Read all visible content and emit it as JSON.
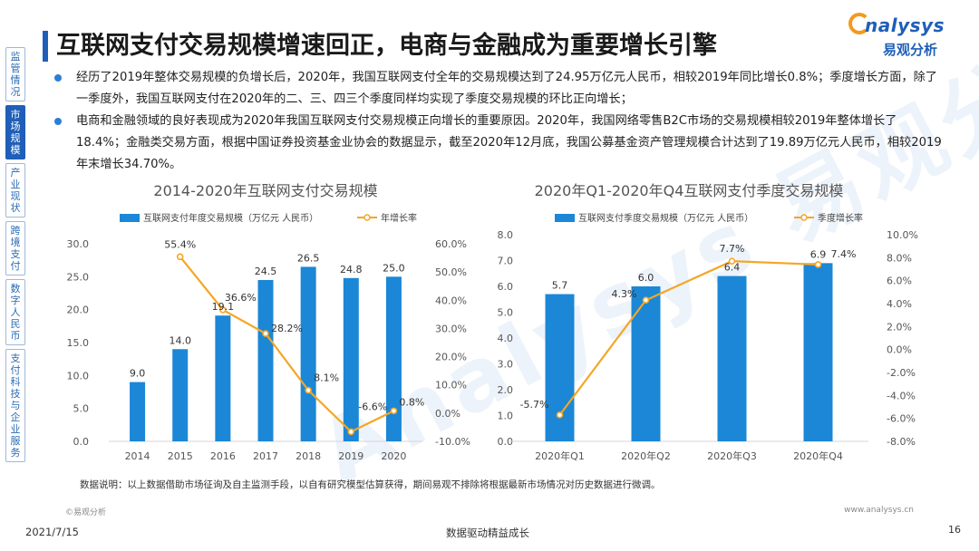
{
  "page": {
    "title": "互联网支付交易规模增速回正，电商与金融成为重要增长引擎",
    "brand_en": "nalysys",
    "brand_zh": "易观分析",
    "watermark": "Analysys 易观分析",
    "side_nav": [
      "监管情况",
      "市场规模",
      "产业现状",
      "跨境支付",
      "数字人民币",
      "支付科技与企业服务"
    ],
    "side_nav_active": 1,
    "bullets": [
      "经历了2019年整体交易规模的负增长后，2020年，我国互联网支付全年的交易规模达到了24.95万亿元人民币，相较2019年同比增长0.8%；季度增长方面，除了一季度外，我国互联网支付在2020年的二、三、四三个季度同样均实现了季度交易规模的环比正向增长；",
      "电商和金融领域的良好表现成为2020年我国互联网支付交易规模正向增长的重要原因。2020年，我国网络零售B2C市场的交易规模相较2019年整体增长了18.4%；金融类交易方面，根据中国证券投资基金业协会的数据显示，截至2020年12月底，我国公募基金资产管理规模合计达到了19.89万亿元人民币，相较2019年末增长34.70%。"
    ],
    "footnote": "数据说明：以上数据借助市场征询及自主监测手段，以自有研究模型估算获得，期间易观不排除将根据最新市场情况对历史数据进行微调。",
    "copyright": "©易观分析",
    "site": "www.analysys.cn",
    "date": "2021/7/15",
    "slogan": "数据驱动精益成长",
    "page_number": "16"
  },
  "colors": {
    "bar": "#1b87d6",
    "line": "#f5a623",
    "accent": "#1f5fb8"
  },
  "chart_data": [
    {
      "type": "bar",
      "title": "2014-2020年互联网支付交易规模",
      "categories": [
        "2014",
        "2015",
        "2016",
        "2017",
        "2018",
        "2019",
        "2020"
      ],
      "series": [
        {
          "name": "互联网支付年度交易规模（万亿元 人民币）",
          "type": "bar",
          "axis": "left",
          "values": [
            9.0,
            14.0,
            19.1,
            24.5,
            26.5,
            24.8,
            25.0
          ],
          "labels": [
            "9.0",
            "14.0",
            "19.1",
            "24.5",
            "26.5",
            "24.8",
            "25.0"
          ]
        },
        {
          "name": "年增长率",
          "type": "line",
          "axis": "right",
          "values": [
            null,
            55.4,
            36.6,
            28.2,
            8.1,
            -6.6,
            0.8
          ],
          "labels": [
            "",
            "55.4%",
            "36.6%",
            "28.2%",
            "8.1%",
            "-6.6%",
            "0.8%"
          ]
        }
      ],
      "ylim_left": [
        0,
        30
      ],
      "yticks_left": [
        "0.0",
        "5.0",
        "10.0",
        "15.0",
        "20.0",
        "25.0",
        "30.0"
      ],
      "ylim_right": [
        -10,
        60
      ],
      "yticks_right": [
        "-10.0%",
        "0.0%",
        "10.0%",
        "20.0%",
        "30.0%",
        "40.0%",
        "50.0%",
        "60.0%"
      ],
      "legend": "top"
    },
    {
      "type": "bar",
      "title": "2020年Q1-2020年Q4互联网支付季度交易规模",
      "categories": [
        "2020年Q1",
        "2020年Q2",
        "2020年Q3",
        "2020年Q4"
      ],
      "series": [
        {
          "name": "互联网支付季度交易规模（万亿元 人民币）",
          "type": "bar",
          "axis": "left",
          "values": [
            5.7,
            6.0,
            6.4,
            6.9
          ],
          "labels": [
            "5.7",
            "6.0",
            "6.4",
            "6.9"
          ]
        },
        {
          "name": "季度增长率",
          "type": "line",
          "axis": "right",
          "values": [
            -5.7,
            4.3,
            7.7,
            7.4
          ],
          "labels": [
            "-5.7%",
            "4.3%",
            "7.7%",
            "7.4%"
          ]
        }
      ],
      "ylim_left": [
        0,
        8
      ],
      "yticks_left": [
        "0.0",
        "1.0",
        "2.0",
        "3.0",
        "4.0",
        "5.0",
        "6.0",
        "7.0",
        "8.0"
      ],
      "ylim_right": [
        -8,
        10
      ],
      "yticks_right": [
        "-8.0%",
        "-6.0%",
        "-4.0%",
        "-2.0%",
        "0.0%",
        "2.0%",
        "4.0%",
        "6.0%",
        "8.0%",
        "10.0%"
      ],
      "legend": "top"
    }
  ]
}
